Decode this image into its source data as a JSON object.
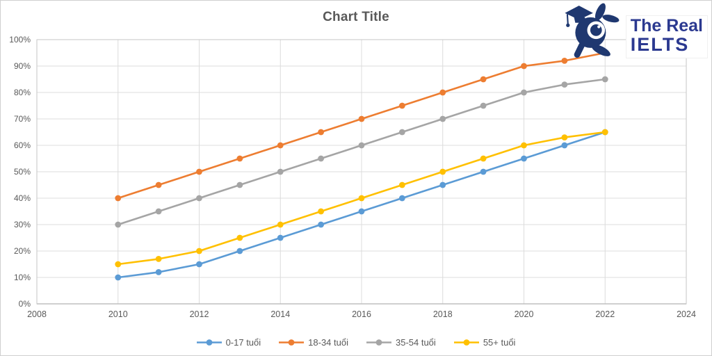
{
  "logo": {
    "line1": "The Real",
    "line2": "IELTS",
    "text_color": "#2B3990",
    "mascot_color": "#1F3870"
  },
  "chart_data": {
    "type": "line",
    "title": "Chart Title",
    "xlabel": "",
    "ylabel": "",
    "x": [
      2010,
      2011,
      2012,
      2013,
      2014,
      2015,
      2016,
      2017,
      2018,
      2019,
      2020,
      2021,
      2022
    ],
    "series": [
      {
        "name": "0-17 tuổi",
        "color": "#5B9BD5",
        "values": [
          10,
          12,
          15,
          20,
          25,
          30,
          35,
          40,
          45,
          50,
          55,
          60,
          65
        ]
      },
      {
        "name": "18-34 tuổi",
        "color": "#ED7D31",
        "values": [
          40,
          45,
          50,
          55,
          60,
          65,
          70,
          75,
          80,
          85,
          90,
          92,
          95
        ]
      },
      {
        "name": "35-54 tuổi",
        "color": "#A5A5A5",
        "values": [
          30,
          35,
          40,
          45,
          50,
          55,
          60,
          65,
          70,
          75,
          80,
          83,
          85
        ]
      },
      {
        "name": "55+ tuổi",
        "color": "#FFC000",
        "values": [
          15,
          17,
          20,
          25,
          30,
          35,
          40,
          45,
          50,
          55,
          60,
          63,
          65
        ]
      }
    ],
    "x_axis": {
      "min": 2008,
      "max": 2024,
      "tick_step": 2,
      "tick_labels": [
        "2008",
        "2010",
        "2012",
        "2014",
        "2016",
        "2018",
        "2020",
        "2022",
        "2024"
      ]
    },
    "y_axis": {
      "min": 0,
      "max": 100,
      "tick_step": 10,
      "tick_labels": [
        "0%",
        "10%",
        "20%",
        "30%",
        "40%",
        "50%",
        "60%",
        "70%",
        "80%",
        "90%",
        "100%"
      ]
    },
    "grid": true,
    "legend_position": "bottom",
    "style": {
      "grid_color": "#DCDCDC",
      "border_color": "#C6C6C6",
      "axis_color": "#BFBFBF",
      "label_color": "#595959",
      "title_color": "#595959"
    }
  }
}
